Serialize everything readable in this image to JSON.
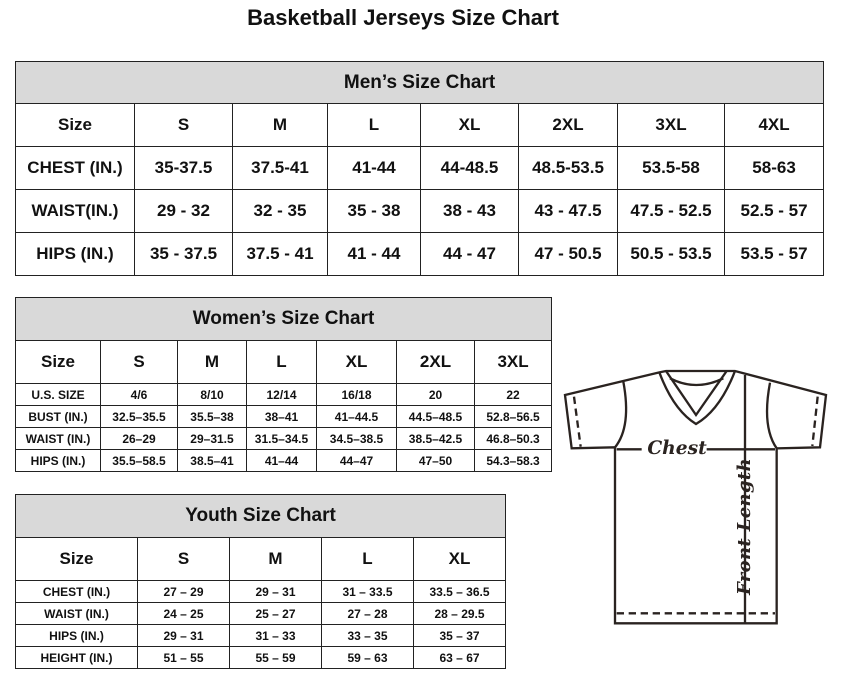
{
  "title": "Basketball Jerseys Size Chart",
  "men": {
    "title": "Men’s Size Chart",
    "sizes": [
      "Size",
      "S",
      "M",
      "L",
      "XL",
      "2XL",
      "3XL",
      "4XL"
    ],
    "rows": [
      [
        "CHEST (IN.)",
        "35-37.5",
        "37.5-41",
        "41-44",
        "44-48.5",
        "48.5-53.5",
        "53.5-58",
        "58-63"
      ],
      [
        "WAIST(IN.)",
        "29 - 32",
        "32 - 35",
        "35 - 38",
        "38 - 43",
        "43 - 47.5",
        "47.5 - 52.5",
        "52.5 - 57"
      ],
      [
        "HIPS (IN.)",
        "35 - 37.5",
        "37.5 - 41",
        "41 - 44",
        "44 - 47",
        "47 - 50.5",
        "50.5 - 53.5",
        "53.5 - 57"
      ]
    ]
  },
  "women": {
    "title": "Women’s Size Chart",
    "sizes": [
      "Size",
      "S",
      "M",
      "L",
      "XL",
      "2XL",
      "3XL"
    ],
    "rows": [
      [
        "U.S. SIZE",
        "4/6",
        "8/10",
        "12/14",
        "16/18",
        "20",
        "22"
      ],
      [
        "BUST (IN.)",
        "32.5–35.5",
        "35.5–38",
        "38–41",
        "41–44.5",
        "44.5–48.5",
        "52.8–56.5"
      ],
      [
        "WAIST (IN.)",
        "26–29",
        "29–31.5",
        "31.5–34.5",
        "34.5–38.5",
        "38.5–42.5",
        "46.8–50.3"
      ],
      [
        "HIPS (IN.)",
        "35.5–58.5",
        "38.5–41",
        "41–44",
        "44–47",
        "47–50",
        "54.3–58.3"
      ]
    ]
  },
  "youth": {
    "title": "Youth Size Chart",
    "sizes": [
      "Size",
      "S",
      "M",
      "L",
      "XL"
    ],
    "rows": [
      [
        "CHEST (IN.)",
        "27 – 29",
        "29 – 31",
        "31 – 33.5",
        "33.5 – 36.5"
      ],
      [
        "WAIST (IN.)",
        "24 – 25",
        "25 – 27",
        "27 – 28",
        "28 – 29.5"
      ],
      [
        "HIPS (IN.)",
        "29 – 31",
        "31 – 33",
        "33 – 35",
        "35 – 37"
      ],
      [
        "HEIGHT (IN.)",
        "51 – 55",
        "55 – 59",
        "59 – 63",
        "63 – 67"
      ]
    ]
  },
  "diagram": {
    "chest_label": "Chest",
    "length_label": "Front Length"
  },
  "colors": {
    "header_fill": "#d9d9d9",
    "border": "#222222"
  }
}
